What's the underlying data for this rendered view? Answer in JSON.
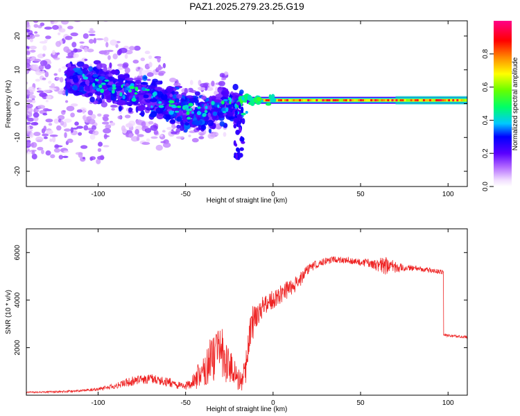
{
  "figure_title": "PAZ1.2025.279.23.25.G19",
  "chart_data": [
    {
      "type": "heatmap",
      "title": "PAZ1.2025.279.23.25.G19",
      "xlabel": "Height of straight line (km)",
      "ylabel": "Frequency (Hz)",
      "xlim": [
        -141,
        111
      ],
      "ylim": [
        -24.5,
        24.5
      ],
      "xticks": [
        -100,
        -50,
        0,
        50,
        100
      ],
      "yticks": [
        -20,
        -10,
        0,
        10,
        20
      ],
      "xtick_labels": [
        "-100",
        "-50",
        "0",
        "50",
        "100"
      ],
      "ytick_labels": [
        "-20",
        "-10",
        "0",
        "10",
        "20"
      ],
      "colorbar": {
        "label": "Normalized spectral amplitude",
        "range": [
          0,
          1
        ],
        "ticks": [
          0.0,
          0.2,
          0.4,
          0.6,
          0.8
        ],
        "tick_labels": [
          "0.0",
          "0.2",
          "0.4",
          "0.6",
          "0.8"
        ],
        "colormap": [
          "#ffffff",
          "#e8c8ff",
          "#9933ff",
          "#4400ff",
          "#0000ff",
          "#00ccff",
          "#00ff66",
          "#66ff00",
          "#ffff00",
          "#ff8800",
          "#ff0000",
          "#ff0088"
        ]
      },
      "trend": {
        "description_points_x": [
          -120,
          -100,
          -80,
          -60,
          -50,
          -40,
          -30,
          -20,
          -15,
          -5,
          0,
          20,
          60,
          110
        ],
        "description_points_freq": [
          8,
          6,
          3,
          0,
          -2,
          -3,
          0,
          -1,
          -0.5,
          0.5,
          1,
          1,
          1,
          1
        ]
      }
    },
    {
      "type": "line",
      "xlabel": "Height of straight line (km)",
      "ylabel": "SNR (10 * v/v)",
      "xlim": [
        -141,
        111
      ],
      "ylim": [
        0,
        7000
      ],
      "xticks": [
        -100,
        -50,
        0,
        50,
        100
      ],
      "yticks": [
        2000,
        4000,
        6000
      ],
      "xtick_labels": [
        "-100",
        "-50",
        "0",
        "50",
        "100"
      ],
      "ytick_labels": [
        "2000",
        "4000",
        "6000"
      ],
      "series": [
        {
          "name": "SNR",
          "color": "#ee2222",
          "x": [
            -141,
            -120,
            -100,
            -90,
            -80,
            -70,
            -60,
            -50,
            -45,
            -40,
            -35,
            -30,
            -25,
            -20,
            -18,
            -15,
            -12,
            -10,
            -5,
            0,
            5,
            10,
            15,
            20,
            25,
            30,
            35,
            40,
            45,
            50,
            55,
            60,
            65,
            70,
            75,
            80,
            85,
            90,
            95,
            97,
            98,
            100,
            105,
            111
          ],
          "y": [
            120,
            150,
            250,
            400,
            600,
            700,
            550,
            350,
            700,
            1100,
            1700,
            2000,
            1500,
            800,
            600,
            1600,
            2900,
            3300,
            3800,
            4000,
            4300,
            4500,
            4800,
            5300,
            5500,
            5650,
            5700,
            5700,
            5650,
            5600,
            5550,
            5500,
            5450,
            5400,
            5350,
            5350,
            5300,
            5250,
            5200,
            5150,
            2550,
            2500,
            2480,
            2450
          ],
          "noise": [
            30,
            40,
            60,
            120,
            200,
            200,
            200,
            150,
            400,
            800,
            1100,
            1100,
            1000,
            600,
            400,
            700,
            900,
            500,
            450,
            450,
            400,
            350,
            300,
            200,
            180,
            150,
            150,
            150,
            150,
            160,
            200,
            300,
            400,
            250,
            150,
            120,
            100,
            100,
            100,
            100,
            60,
            60,
            60,
            60
          ]
        }
      ]
    }
  ]
}
